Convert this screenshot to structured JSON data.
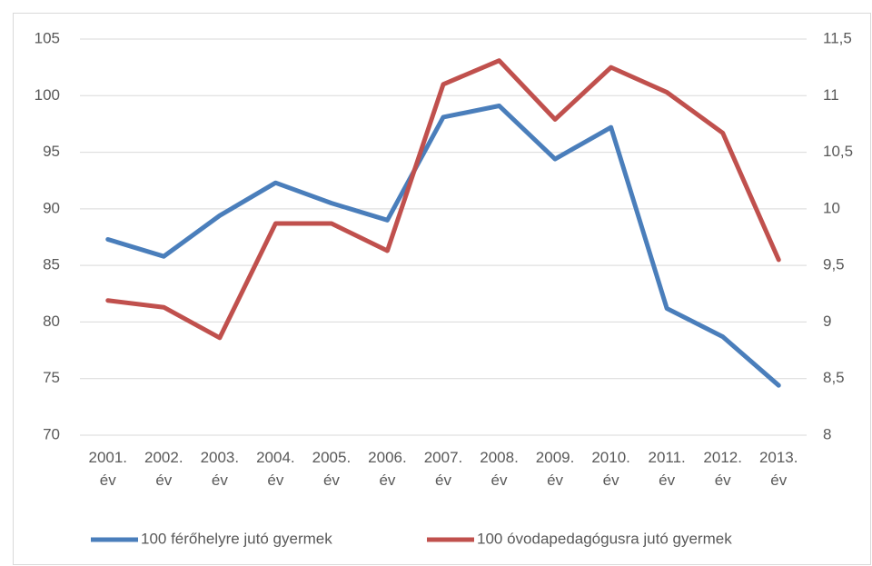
{
  "chart_data": {
    "type": "line",
    "categories": [
      "2001. év",
      "2002. év",
      "2003. év",
      "2004. év",
      "2005. év",
      "2006. év",
      "2007. év",
      "2008. év",
      "2009. év",
      "2010. év",
      "2011. év",
      "2012. év",
      "2013. év"
    ],
    "series": [
      {
        "name": "100 férőhelyre jutó gyermek",
        "color": "#4a7ebb",
        "values": [
          87.3,
          85.8,
          89.4,
          92.3,
          90.5,
          89.0,
          98.1,
          99.1,
          94.4,
          97.2,
          81.2,
          78.7,
          74.4
        ]
      },
      {
        "name": "100 óvodapedagógusra jutó gyermek",
        "color": "#c0504d",
        "axis": "y2",
        "values": [
          9.19,
          9.13,
          8.86,
          9.87,
          9.87,
          9.63,
          11.1,
          11.31,
          10.79,
          11.25,
          11.03,
          10.67,
          9.55
        ]
      }
    ],
    "ylim": [
      70,
      105
    ],
    "yticks": [
      70,
      75,
      80,
      85,
      90,
      95,
      100,
      105
    ],
    "y2lim": [
      8,
      11.5
    ],
    "y2ticks": [
      8,
      {
        "value": 8.5,
        "label": "8,5"
      },
      9,
      {
        "value": 9.5,
        "label": "9,5"
      },
      10,
      {
        "value": 10.5,
        "label": "10,5"
      },
      11,
      {
        "value": 11.5,
        "label": "11,5"
      }
    ],
    "grid": true,
    "legend": "bottom"
  }
}
